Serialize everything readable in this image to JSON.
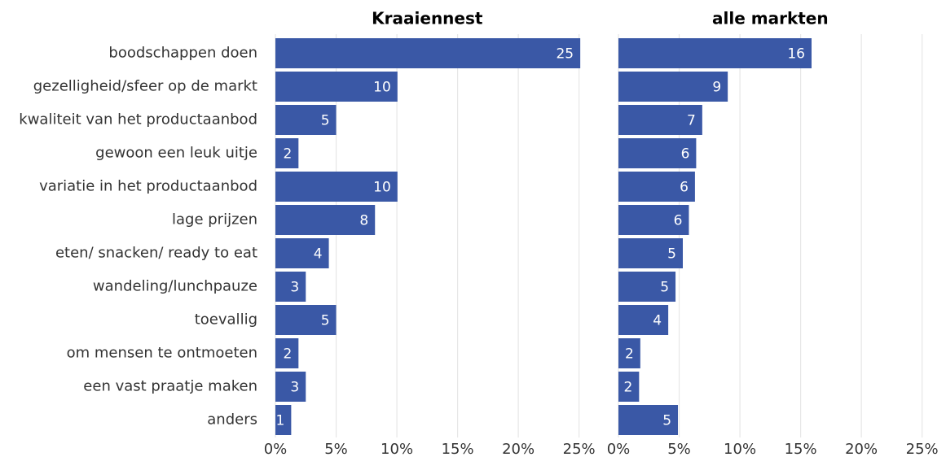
{
  "chart_data": [
    {
      "type": "bar",
      "orientation": "horizontal",
      "title": "Kraaiennest",
      "color": "#3a58a6",
      "categories": [
        "boodschappen doen",
        "gezelligheid/sfeer op de markt",
        "kwaliteit van het productaanbod",
        "gewoon een leuk uitje",
        "variatie in het productaanbod",
        "lage prijzen",
        "eten/ snacken/ ready to eat",
        "wandeling/lunchpauze",
        "toevallig",
        "om mensen te ontmoeten",
        "een vast praatje maken",
        "anders"
      ],
      "values": [
        25.1,
        10.05,
        5.0,
        1.9,
        10.05,
        8.2,
        4.4,
        2.5,
        5.0,
        1.9,
        2.5,
        1.3
      ],
      "value_labels": [
        "25",
        "10",
        "5",
        "2",
        "10",
        "8",
        "4",
        "3",
        "5",
        "2",
        "3",
        "1"
      ],
      "xlim": [
        0,
        26.5
      ],
      "xticks": [
        {
          "value": 0,
          "label": "0%"
        },
        {
          "value": 5,
          "label": "5%"
        },
        {
          "value": 10,
          "label": "10%"
        },
        {
          "value": 15,
          "label": "15%"
        },
        {
          "value": 20,
          "label": "20%"
        },
        {
          "value": 25,
          "label": "25%"
        }
      ],
      "grid": true
    },
    {
      "type": "bar",
      "orientation": "horizontal",
      "title": "alle markten",
      "color": "#3a58a6",
      "values": [
        15.9,
        9.0,
        6.9,
        6.4,
        6.3,
        5.8,
        5.3,
        4.7,
        4.1,
        1.8,
        1.7,
        4.9
      ],
      "value_labels": [
        "16",
        "9",
        "7",
        "6",
        "6",
        "6",
        "5",
        "5",
        "4",
        "2",
        "2",
        "5"
      ],
      "xlim": [
        0,
        26.5
      ],
      "xticks": [
        {
          "value": 0,
          "label": "0%"
        },
        {
          "value": 5,
          "label": "5%"
        },
        {
          "value": 10,
          "label": "10%"
        },
        {
          "value": 15,
          "label": "15%"
        },
        {
          "value": 20,
          "label": "20%"
        },
        {
          "value": 25,
          "label": "25%"
        }
      ],
      "grid": true
    }
  ]
}
